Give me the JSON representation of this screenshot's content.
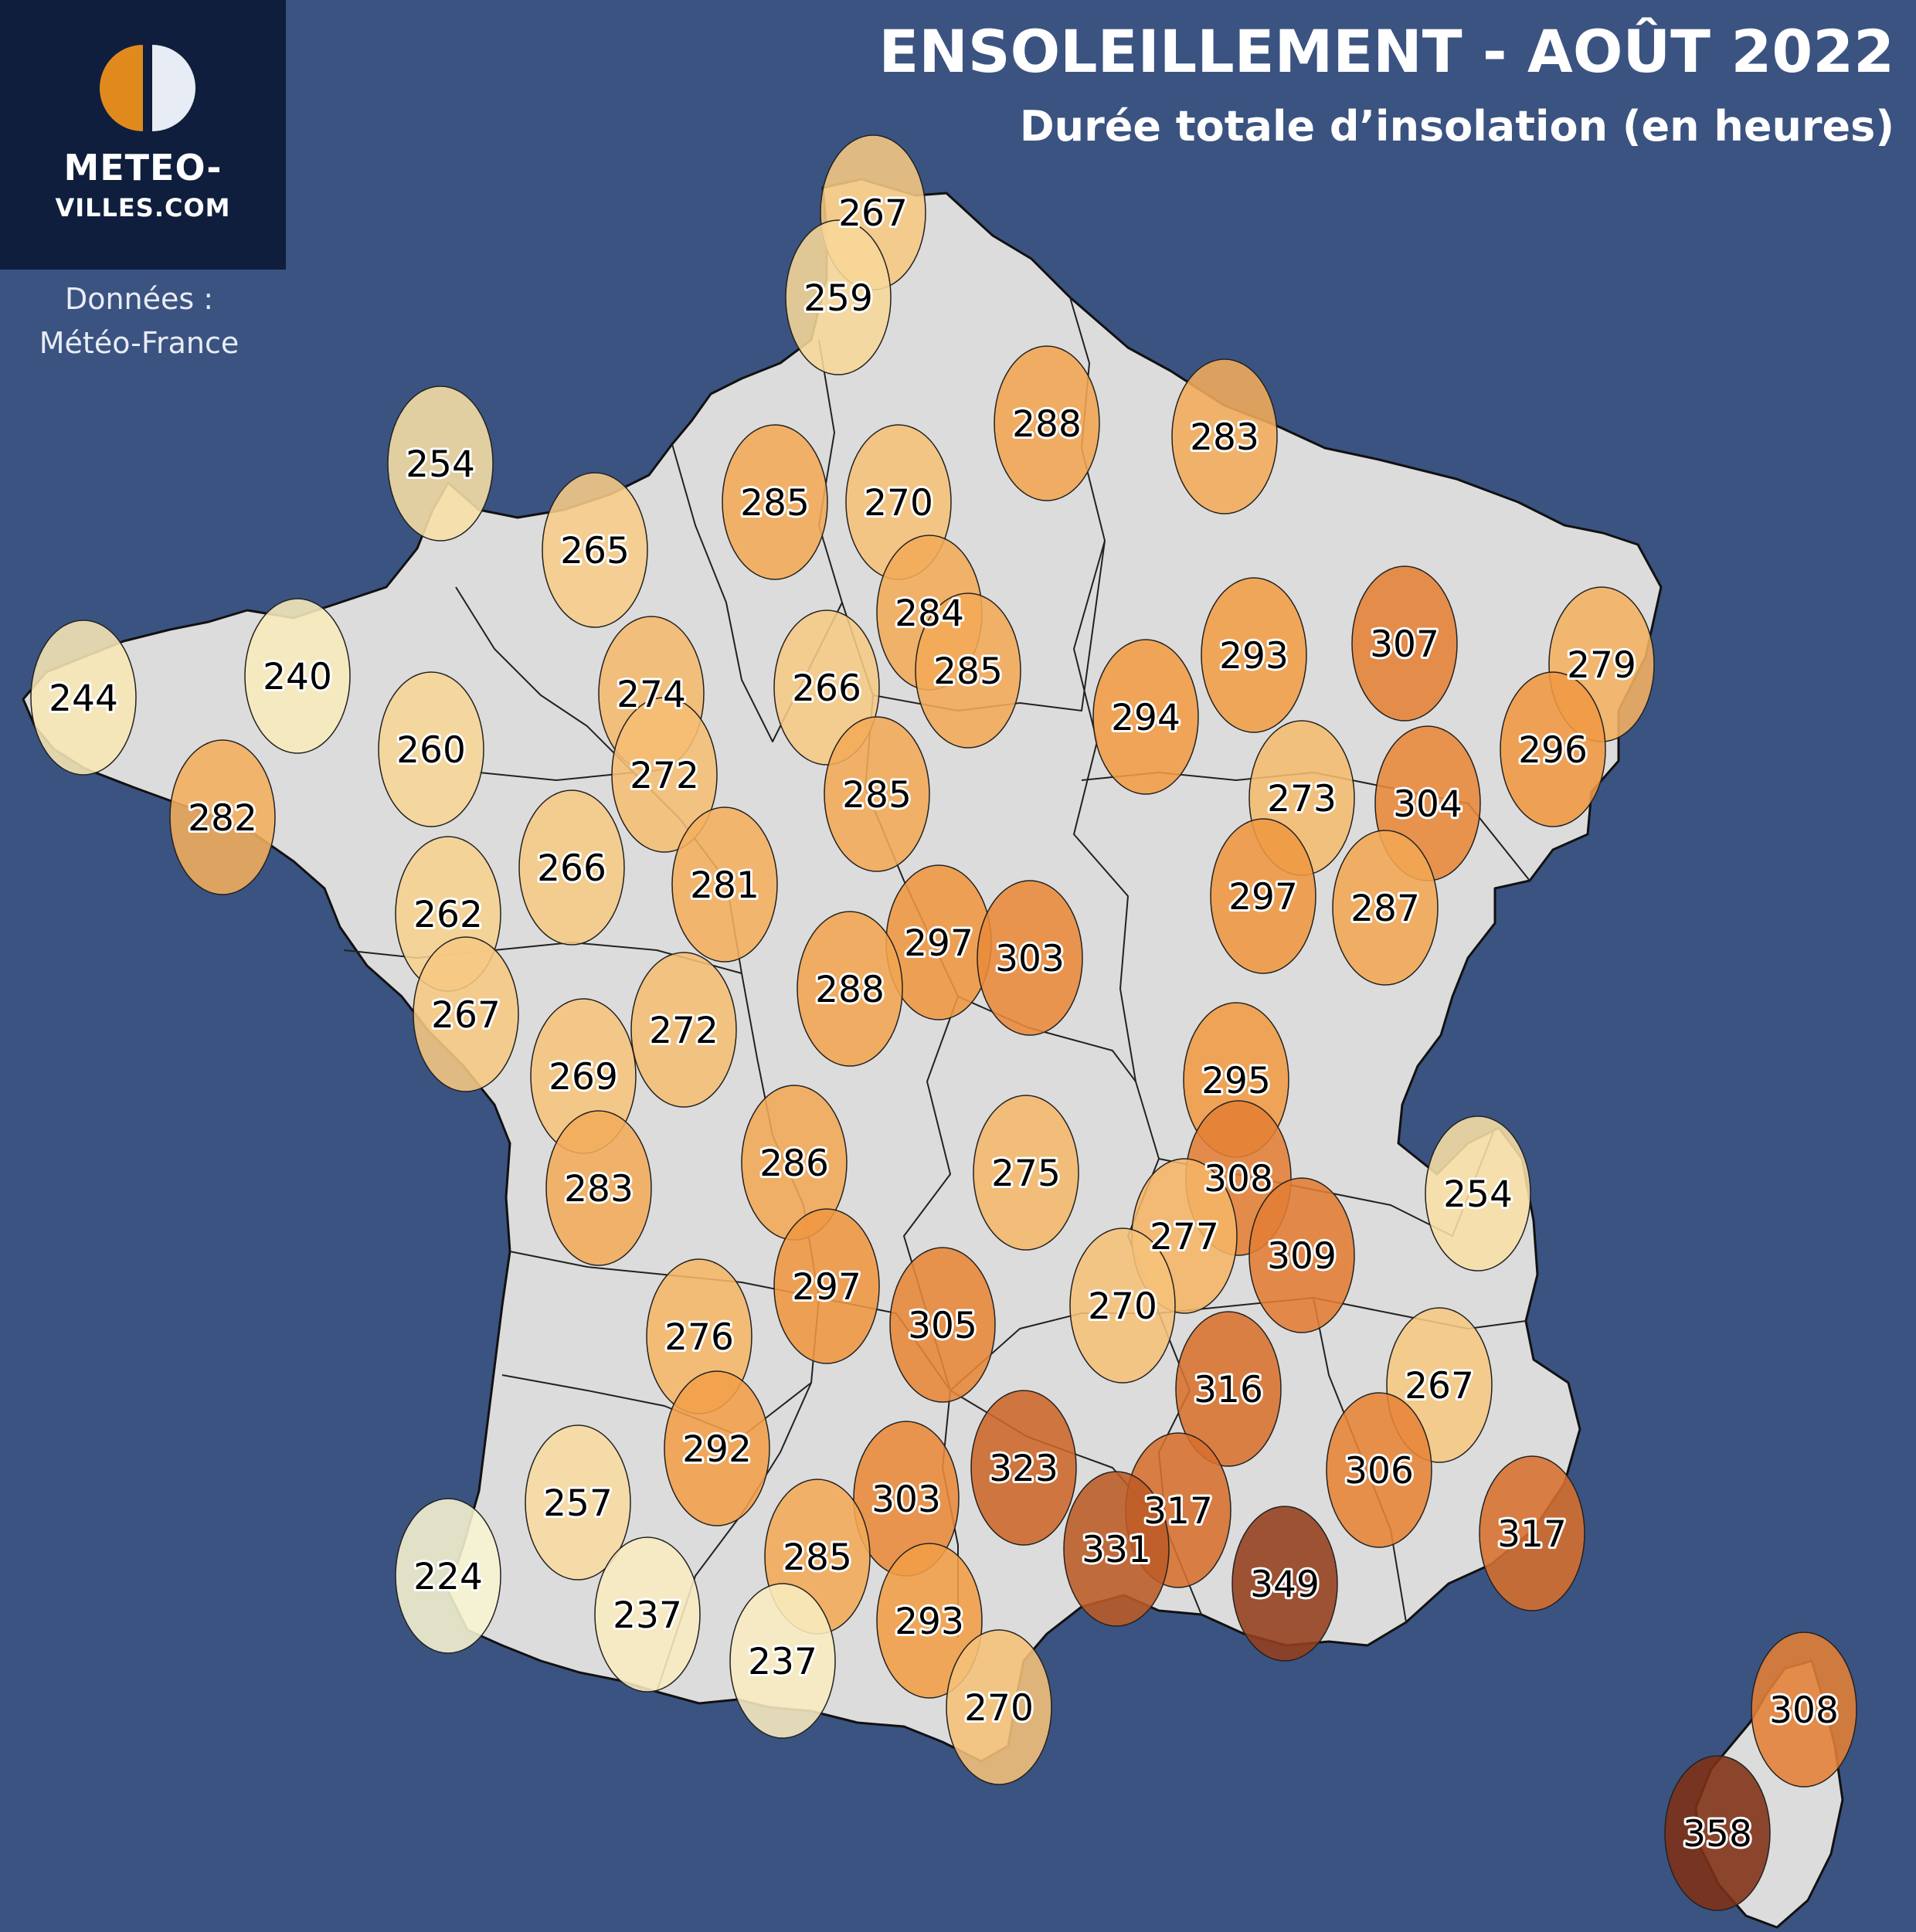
{
  "title": "ENSOLEILLEMENT - AOÛT 2022",
  "subtitle": "Durée totale d’insolation (en heures)",
  "logo": {
    "line1": "METEO-",
    "line2": "VILLES.COM"
  },
  "source": {
    "line1": "Données :",
    "line2": "Météo-France"
  },
  "colors": {
    "background": "#3b5381",
    "land": "#dcdcdc",
    "logo_bg": "#0f1e3d",
    "logo_orange": "#e08a1e",
    "logo_white": "#e8ecf4"
  },
  "chart_data": {
    "type": "bubble-map",
    "unit": "heures",
    "color_scale": [
      {
        "value": 224,
        "color": "#f8f5d2"
      },
      {
        "value": 255,
        "color": "#f8dfa5"
      },
      {
        "value": 275,
        "color": "#f5b86a"
      },
      {
        "value": 295,
        "color": "#f19b43"
      },
      {
        "value": 310,
        "color": "#e27b33"
      },
      {
        "value": 325,
        "color": "#ca6428"
      },
      {
        "value": 340,
        "color": "#a84e23"
      },
      {
        "value": 358,
        "color": "#7f3014"
      }
    ],
    "stations": [
      {
        "value": 267
      },
      {
        "value": 259
      },
      {
        "value": 288
      },
      {
        "value": 283
      },
      {
        "value": 254
      },
      {
        "value": 265
      },
      {
        "value": 285
      },
      {
        "value": 270
      },
      {
        "value": 284
      },
      {
        "value": 285
      },
      {
        "value": 244
      },
      {
        "value": 240
      },
      {
        "value": 274
      },
      {
        "value": 266
      },
      {
        "value": 294
      },
      {
        "value": 293
      },
      {
        "value": 307
      },
      {
        "value": 279
      },
      {
        "value": 260
      },
      {
        "value": 282
      },
      {
        "value": 272
      },
      {
        "value": 285
      },
      {
        "value": 296
      },
      {
        "value": 273
      },
      {
        "value": 304
      },
      {
        "value": 266
      },
      {
        "value": 281
      },
      {
        "value": 262
      },
      {
        "value": 297
      },
      {
        "value": 287
      },
      {
        "value": 297
      },
      {
        "value": 303
      },
      {
        "value": 288
      },
      {
        "value": 267
      },
      {
        "value": 272
      },
      {
        "value": 269
      },
      {
        "value": 295
      },
      {
        "value": 286
      },
      {
        "value": 275
      },
      {
        "value": 283
      },
      {
        "value": 308
      },
      {
        "value": 254
      },
      {
        "value": 277
      },
      {
        "value": 309
      },
      {
        "value": 297
      },
      {
        "value": 270
      },
      {
        "value": 276
      },
      {
        "value": 305
      },
      {
        "value": 316
      },
      {
        "value": 267
      },
      {
        "value": 292
      },
      {
        "value": 323
      },
      {
        "value": 306
      },
      {
        "value": 257
      },
      {
        "value": 303
      },
      {
        "value": 317
      },
      {
        "value": 317
      },
      {
        "value": 331
      },
      {
        "value": 285
      },
      {
        "value": 224
      },
      {
        "value": 349
      },
      {
        "value": 237
      },
      {
        "value": 293
      },
      {
        "value": 237
      },
      {
        "value": 270
      },
      {
        "value": 308
      },
      {
        "value": 358
      }
    ]
  }
}
